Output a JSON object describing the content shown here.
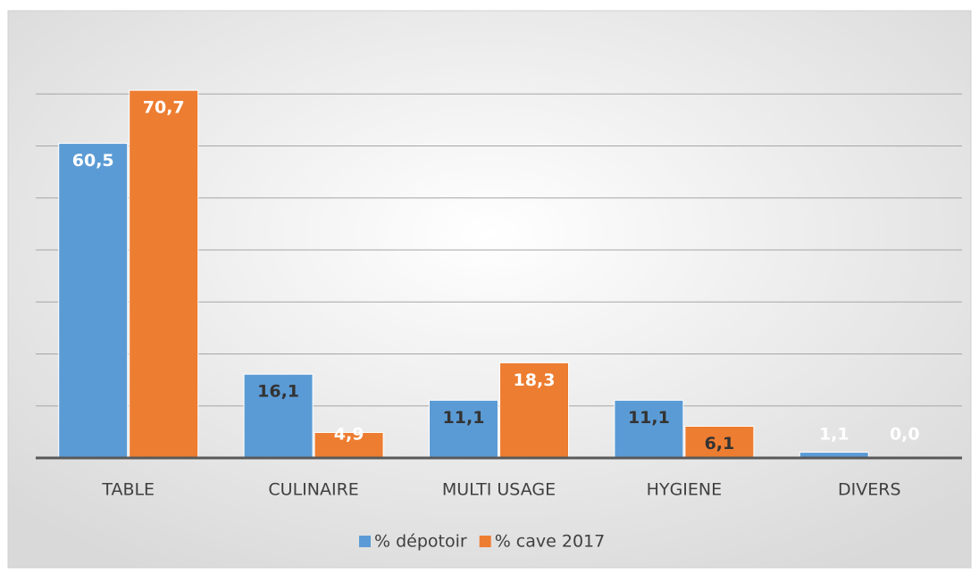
{
  "chart_data": {
    "type": "bar",
    "categories": [
      "TABLE",
      "CULINAIRE",
      "MULTI USAGE",
      "HYGIENE",
      "DIVERS"
    ],
    "series": [
      {
        "name": "% dépotoir",
        "color": "#5b9bd5",
        "values": [
          60.5,
          16.1,
          11.1,
          11.1,
          1.1
        ],
        "value_labels": [
          "60,5",
          "16,1",
          "11,1",
          "11,1",
          "1,1"
        ]
      },
      {
        "name": "% cave 2017",
        "color": "#ed7d31",
        "values": [
          70.7,
          4.9,
          18.3,
          6.1,
          0.0
        ],
        "value_labels": [
          "70,7",
          "4,9",
          "18,3",
          "6,1",
          "0,0"
        ]
      }
    ],
    "ylim": [
      0,
      80
    ],
    "yticks": [
      0,
      10,
      20,
      30,
      40,
      50,
      60,
      70
    ],
    "grid": true,
    "legend": "bottom"
  }
}
